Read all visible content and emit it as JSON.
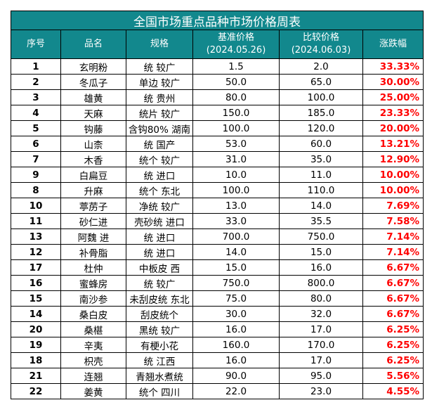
{
  "title": "全国市场重点品种市场价格周表",
  "headers": {
    "index": "序号",
    "name": "品名",
    "spec": "规格",
    "base_label": "基准价格",
    "base_date": "(2024.05.26)",
    "compare_label": "比较价格",
    "compare_date": "(2024.06.03)",
    "change": "涨跌幅"
  },
  "rows": [
    {
      "idx": "1",
      "name": "玄明粉",
      "spec": "统 较广",
      "base": "1.5",
      "cmp": "2.0",
      "pct": "33.33%"
    },
    {
      "idx": "2",
      "name": "冬瓜子",
      "spec": "单边 较广",
      "base": "50.0",
      "cmp": "65.0",
      "pct": "30.00%"
    },
    {
      "idx": "3",
      "name": "雄黄",
      "spec": "统 贵州",
      "base": "80.0",
      "cmp": "100.0",
      "pct": "25.00%"
    },
    {
      "idx": "4",
      "name": "天麻",
      "spec": "统片 较广",
      "base": "150.0",
      "cmp": "185.0",
      "pct": "23.33%"
    },
    {
      "idx": "5",
      "name": "钩藤",
      "spec": "含钩80% 湖南",
      "base": "100.0",
      "cmp": "120.0",
      "pct": "20.00%"
    },
    {
      "idx": "6",
      "name": "山柰",
      "spec": "统 国产",
      "base": "53.0",
      "cmp": "60.0",
      "pct": "13.21%"
    },
    {
      "idx": "7",
      "name": "木香",
      "spec": "统个 较广",
      "base": "31.0",
      "cmp": "35.0",
      "pct": "12.90%"
    },
    {
      "idx": "9",
      "name": "白扁豆",
      "spec": "统 进口",
      "base": "10.0",
      "cmp": "11.0",
      "pct": "10.00%"
    },
    {
      "idx": "8",
      "name": "升麻",
      "spec": "统个 东北",
      "base": "100.0",
      "cmp": "110.0",
      "pct": "10.00%"
    },
    {
      "idx": "10",
      "name": "葶苈子",
      "spec": "净统 较广",
      "base": "13.0",
      "cmp": "14.0",
      "pct": "7.69%"
    },
    {
      "idx": "11",
      "name": "砂仁进",
      "spec": "壳砂统 进口",
      "base": "33.0",
      "cmp": "35.5",
      "pct": "7.58%"
    },
    {
      "idx": "13",
      "name": "阿魏 进",
      "spec": "统 进口",
      "base": "700.0",
      "cmp": "750.0",
      "pct": "7.14%"
    },
    {
      "idx": "12",
      "name": "补骨脂",
      "spec": "统 进口",
      "base": "14.0",
      "cmp": "15.0",
      "pct": "7.14%"
    },
    {
      "idx": "17",
      "name": "杜仲",
      "spec": "中板皮 西",
      "base": "15.0",
      "cmp": "16.0",
      "pct": "6.67%"
    },
    {
      "idx": "16",
      "name": "蜜蜂房",
      "spec": "统 较广",
      "base": "750.0",
      "cmp": "800.0",
      "pct": "6.67%"
    },
    {
      "idx": "15",
      "name": "南沙参",
      "spec": "未刮皮统 东北",
      "base": "75.0",
      "cmp": "80.0",
      "pct": "6.67%"
    },
    {
      "idx": "14",
      "name": "桑白皮",
      "spec": "刮皮统个",
      "base": "30.0",
      "cmp": "32.0",
      "pct": "6.67%"
    },
    {
      "idx": "20",
      "name": "桑椹",
      "spec": "黑统 较广",
      "base": "16.0",
      "cmp": "17.0",
      "pct": "6.25%"
    },
    {
      "idx": "19",
      "name": "辛夷",
      "spec": "有梗小花",
      "base": "160.0",
      "cmp": "170.0",
      "pct": "6.25%"
    },
    {
      "idx": "18",
      "name": "枳壳",
      "spec": "统 江西",
      "base": "16.0",
      "cmp": "17.0",
      "pct": "6.25%"
    },
    {
      "idx": "21",
      "name": "连翘",
      "spec": "青翘水煮统",
      "base": "90.0",
      "cmp": "95.0",
      "pct": "5.56%"
    },
    {
      "idx": "22",
      "name": "姜黄",
      "spec": "统个 四川",
      "base": "22.0",
      "cmp": "23.0",
      "pct": "4.55%"
    }
  ],
  "colors": {
    "header_bg": "#12888d",
    "header_text": "#ffffff",
    "change_text": "#ff0000"
  }
}
